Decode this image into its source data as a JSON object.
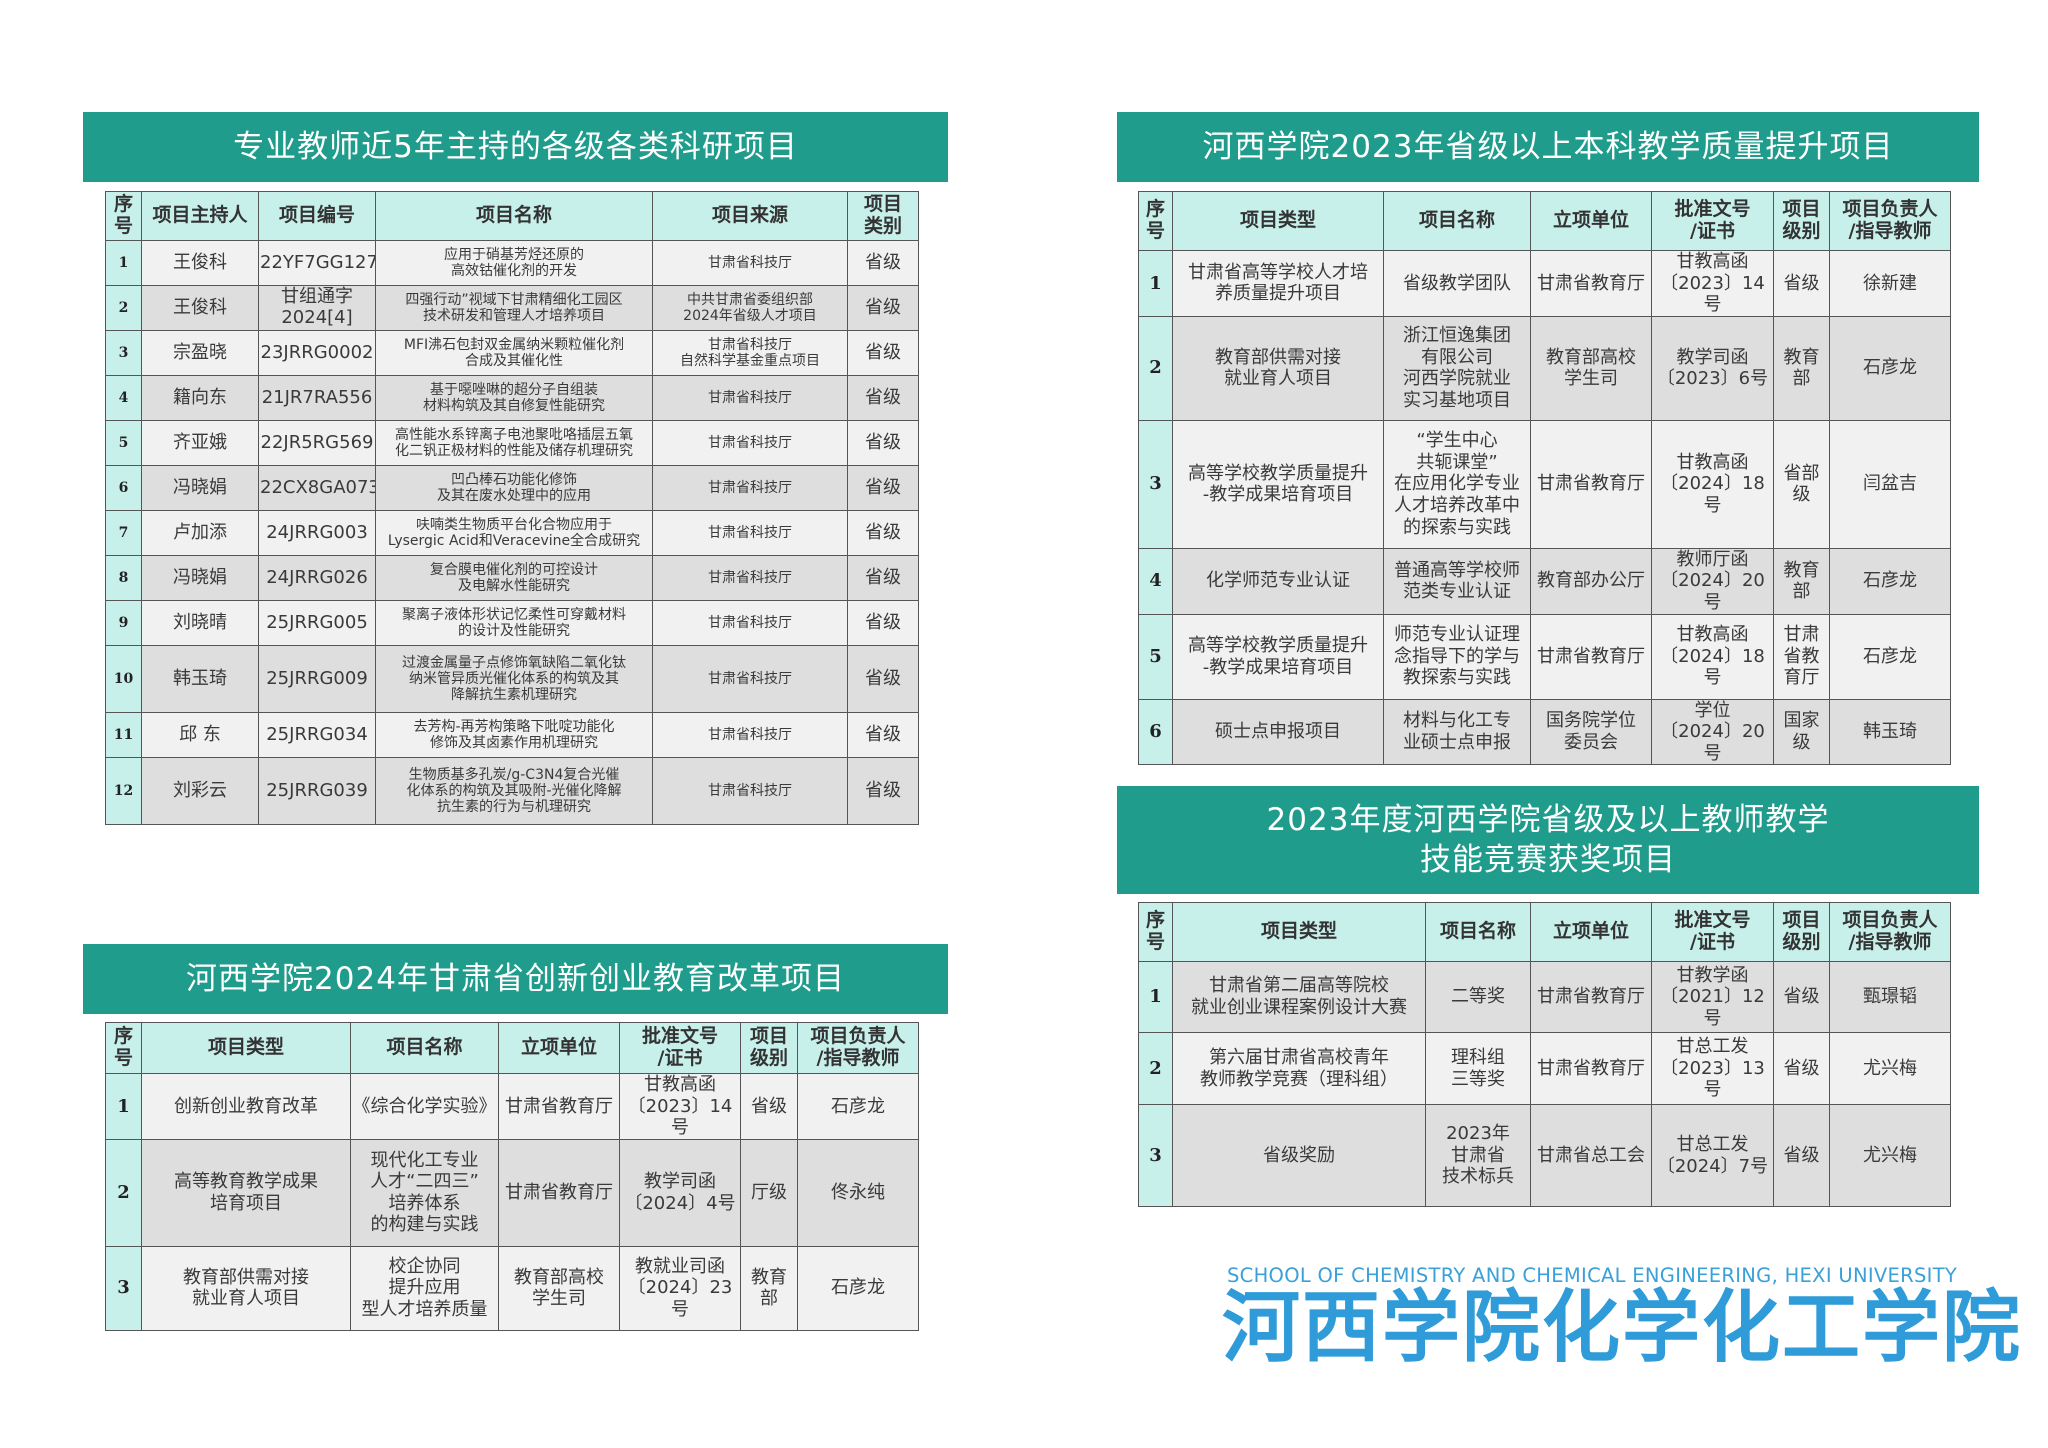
{
  "colors": {
    "banner": "#1f9c8c",
    "header_cell": "#c8f0eb",
    "row_light": "#f1f1f1",
    "row_dark": "#dedede",
    "logo": "#2f9bd8"
  },
  "research": {
    "title": "专业教师近5年主持的各级各类科研项目",
    "headers": [
      "序\n号",
      "项目主持人",
      "项目编号",
      "项目名称",
      "项目来源",
      "项目\n类别"
    ],
    "rows": [
      [
        "1",
        "王俊科",
        "22YF7GG127",
        "应用于硝基芳烃还原的\n高效钴催化剂的开发",
        "甘肃省科技厅",
        "省级"
      ],
      [
        "2",
        "王俊科",
        "甘组通字\n2024[4]",
        "四强行动”视域下甘肃精细化工园区\n技术研发和管理人才培养项目",
        "中共甘肃省委组织部\n2024年省级人才项目",
        "省级"
      ],
      [
        "3",
        "宗盈晓",
        "23JRRG0002",
        "MFI沸石包封双金属纳米颗粒催化剂\n合成及其催化性",
        "甘肃省科技厅\n自然科学基金重点项目",
        "省级"
      ],
      [
        "4",
        "籍向东",
        "21JR7RA556",
        "基于噁唑啉的超分子自组装\n材料构筑及其自修复性能研究",
        "甘肃省科技厅",
        "省级"
      ],
      [
        "5",
        "齐亚娥",
        "22JR5RG569",
        "高性能水系锌离子电池聚吡咯插层五氧\n化二钒正极材料的性能及储存机理研究",
        "甘肃省科技厅",
        "省级"
      ],
      [
        "6",
        "冯晓娟",
        "22CX8GA073",
        "凹凸棒石功能化修饰\n及其在废水处理中的应用",
        "甘肃省科技厅",
        "省级"
      ],
      [
        "7",
        "卢加添",
        "24JRRG003",
        "呋喃类生物质平台化合物应用于\nLysergic Acid和Veracevine全合成研究",
        "甘肃省科技厅",
        "省级"
      ],
      [
        "8",
        "冯晓娟",
        "24JRRG026",
        "复合膜电催化剂的可控设计\n及电解水性能研究",
        "甘肃省科技厅",
        "省级"
      ],
      [
        "9",
        "刘晓晴",
        "25JRRG005",
        "聚离子液体形状记忆柔性可穿戴材料\n的设计及性能研究",
        "甘肃省科技厅",
        "省级"
      ],
      [
        "10",
        "韩玉琦",
        "25JRRG009",
        "过渡金属量子点修饰氧缺陷二氧化钛\n纳米管异质光催化体系的构筑及其\n降解抗生素机理研究",
        "甘肃省科技厅",
        "省级"
      ],
      [
        "11",
        "邱  东",
        "25JRRG034",
        "去芳构-再芳构策略下吡啶功能化\n修饰及其卤素作用机理研究",
        "甘肃省科技厅",
        "省级"
      ],
      [
        "12",
        "刘彩云",
        "25JRRG039",
        "生物质基多孔炭/g-C3N4复合光催\n化体系的构筑及其吸附-光催化降解\n抗生素的行为与机理研究",
        "甘肃省科技厅",
        "省级"
      ]
    ]
  },
  "innovation": {
    "title": "河西学院2024年甘肃省创新创业教育改革项目",
    "headers": [
      "序\n号",
      "项目类型",
      "项目名称",
      "立项单位",
      "批准文号\n/证书",
      "项目\n级别",
      "项目负责人\n/指导教师"
    ],
    "rows": [
      [
        "1",
        "创新创业教育改革",
        "《综合化学实验》",
        "甘肃省教育厅",
        "甘教高函\n〔2023〕14 号",
        "省级",
        "石彦龙"
      ],
      [
        "2",
        "高等教育教学成果\n培育项目",
        "现代化工专业\n人才“二四三”\n培养体系\n的构建与实践",
        "甘肃省教育厅",
        "教学司函\n〔2024〕4号",
        "厅级",
        "佟永纯"
      ],
      [
        "3",
        "教育部供需对接\n就业育人项目",
        "校企协同\n提升应用\n型人才培养质量",
        "教育部高校\n学生司",
        "教就业司函\n〔2024〕23号",
        "教育\n部",
        "石彦龙"
      ]
    ]
  },
  "quality": {
    "title": "河西学院2023年省级以上本科教学质量提升项目",
    "headers": [
      "序\n号",
      "项目类型",
      "项目名称",
      "立项单位",
      "批准文号\n/证书",
      "项目\n级别",
      "项目负责人\n/指导教师"
    ],
    "rows": [
      [
        "1",
        "甘肃省高等学校人才培\n养质量提升项目",
        "省级教学团队",
        "甘肃省教育厅",
        "甘教高函\n〔2023〕14 号",
        "省级",
        "徐新建"
      ],
      [
        "2",
        "教育部供需对接\n就业育人项目",
        "浙江恒逸集团\n有限公司\n河西学院就业\n实习基地项目",
        "教育部高校\n学生司",
        "教学司函\n〔2023〕6号",
        "教育\n部",
        "石彦龙"
      ],
      [
        "3",
        "高等学校教学质量提升\n-教学成果培育项目",
        "“学生中心\n共轭课堂”\n在应用化学专业\n人才培养改革中\n的探索与实践",
        "甘肃省教育厅",
        "甘教高函\n〔2024〕18 号",
        "省部\n级",
        "闫盆吉"
      ],
      [
        "4",
        "化学师范专业认证",
        "普通高等学校师\n范类专业认证",
        "教育部办公厅",
        "教师厅函\n〔2024〕20号",
        "教育\n部",
        "石彦龙"
      ],
      [
        "5",
        "高等学校教学质量提升\n-教学成果培育项目",
        "师范专业认证理\n念指导下的学与\n教探索与实践",
        "甘肃省教育厅",
        "甘教高函\n〔2024〕18 号",
        "甘肃\n省教\n育厅",
        "石彦龙"
      ],
      [
        "6",
        "硕士点申报项目",
        "材料与化工专\n业硕士点申报",
        "国务院学位\n委员会",
        "学位\n〔2024〕20 号",
        "国家\n级",
        "韩玉琦"
      ]
    ]
  },
  "competition": {
    "title": "2023年度河西学院省级及以上教师教学\n技能竞赛获奖项目",
    "headers": [
      "序\n号",
      "项目类型",
      "项目名称",
      "立项单位",
      "批准文号\n/证书",
      "项目\n级别",
      "项目负责人\n/指导教师"
    ],
    "rows": [
      [
        "1",
        "甘肃省第二届高等院校\n就业创业课程案例设计大赛",
        "二等奖",
        "甘肃省教育厅",
        "甘教学函\n〔2021〕12号",
        "省级",
        "甄璟韬"
      ],
      [
        "2",
        "第六届甘肃省高校青年\n教师教学竞赛（理科组）",
        "理科组\n三等奖",
        "甘肃省教育厅",
        "甘总工发\n〔2023〕13号",
        "省级",
        "尤兴梅"
      ],
      [
        "3",
        "省级奖励",
        "2023年\n甘肃省\n技术标兵",
        "甘肃省总工会",
        "甘总工发\n〔2024〕7号",
        "省级",
        "尤兴梅"
      ]
    ]
  },
  "logo": {
    "english": "SCHOOL OF CHEMISTRY AND CHEMICAL ENGINEERING, HEXI UNIVERSITY",
    "chinese": "河西学院化学化工学院"
  }
}
